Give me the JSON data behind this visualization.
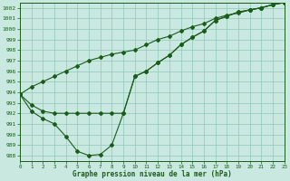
{
  "title": "Graphe pression niveau de la mer (hPa)",
  "bg_color": "#c8e8e0",
  "grid_color": "#90c8b8",
  "line_color": "#1a5c1a",
  "xlim_min": 0,
  "xlim_max": 23,
  "ylim_min": 987.5,
  "ylim_max": 1002.5,
  "ytick_vals": [
    988,
    989,
    990,
    991,
    992,
    993,
    994,
    995,
    996,
    997,
    998,
    999,
    1000,
    1001,
    1002
  ],
  "curve1_x": [
    0,
    1,
    2,
    3,
    4,
    5,
    6,
    7,
    8,
    9,
    10,
    11,
    12,
    13,
    14,
    15,
    16,
    17,
    18,
    19,
    20,
    21,
    22,
    23
  ],
  "curve1_y": [
    993.8,
    994.5,
    995.0,
    995.5,
    996.0,
    996.5,
    997.0,
    997.3,
    997.6,
    997.8,
    998.0,
    998.5,
    999.0,
    999.3,
    999.8,
    1000.2,
    1000.5,
    1001.0,
    1001.3,
    1001.5,
    1001.8,
    1002.0,
    1002.3,
    1002.5
  ],
  "curve2_x": [
    0,
    1,
    2,
    3,
    4,
    5,
    6,
    7,
    8,
    9,
    10,
    11,
    12,
    13,
    14,
    15,
    16,
    17,
    18,
    19,
    20,
    21,
    22,
    23
  ],
  "curve2_y": [
    993.8,
    992.8,
    992.2,
    992.0,
    992.0,
    992.0,
    992.0,
    992.0,
    992.0,
    992.0,
    995.5,
    996.0,
    996.8,
    997.5,
    998.5,
    999.2,
    999.8,
    1000.8,
    1001.2,
    1001.6,
    1001.8,
    1002.0,
    1002.3,
    1002.5
  ],
  "curve3_x": [
    0,
    1,
    2,
    3,
    4,
    5,
    6,
    7,
    8,
    9,
    10,
    11,
    12,
    13,
    14,
    15,
    16,
    17,
    18,
    19,
    20,
    21,
    22,
    23
  ],
  "curve3_y": [
    993.8,
    992.2,
    991.5,
    991.0,
    989.8,
    988.4,
    988.0,
    988.1,
    989.0,
    992.0,
    995.5,
    996.0,
    996.8,
    997.5,
    998.5,
    999.2,
    999.8,
    1000.8,
    1001.2,
    1001.6,
    1001.8,
    1002.0,
    1002.3,
    1002.5
  ],
  "lw": 0.8,
  "ms": 2.0
}
